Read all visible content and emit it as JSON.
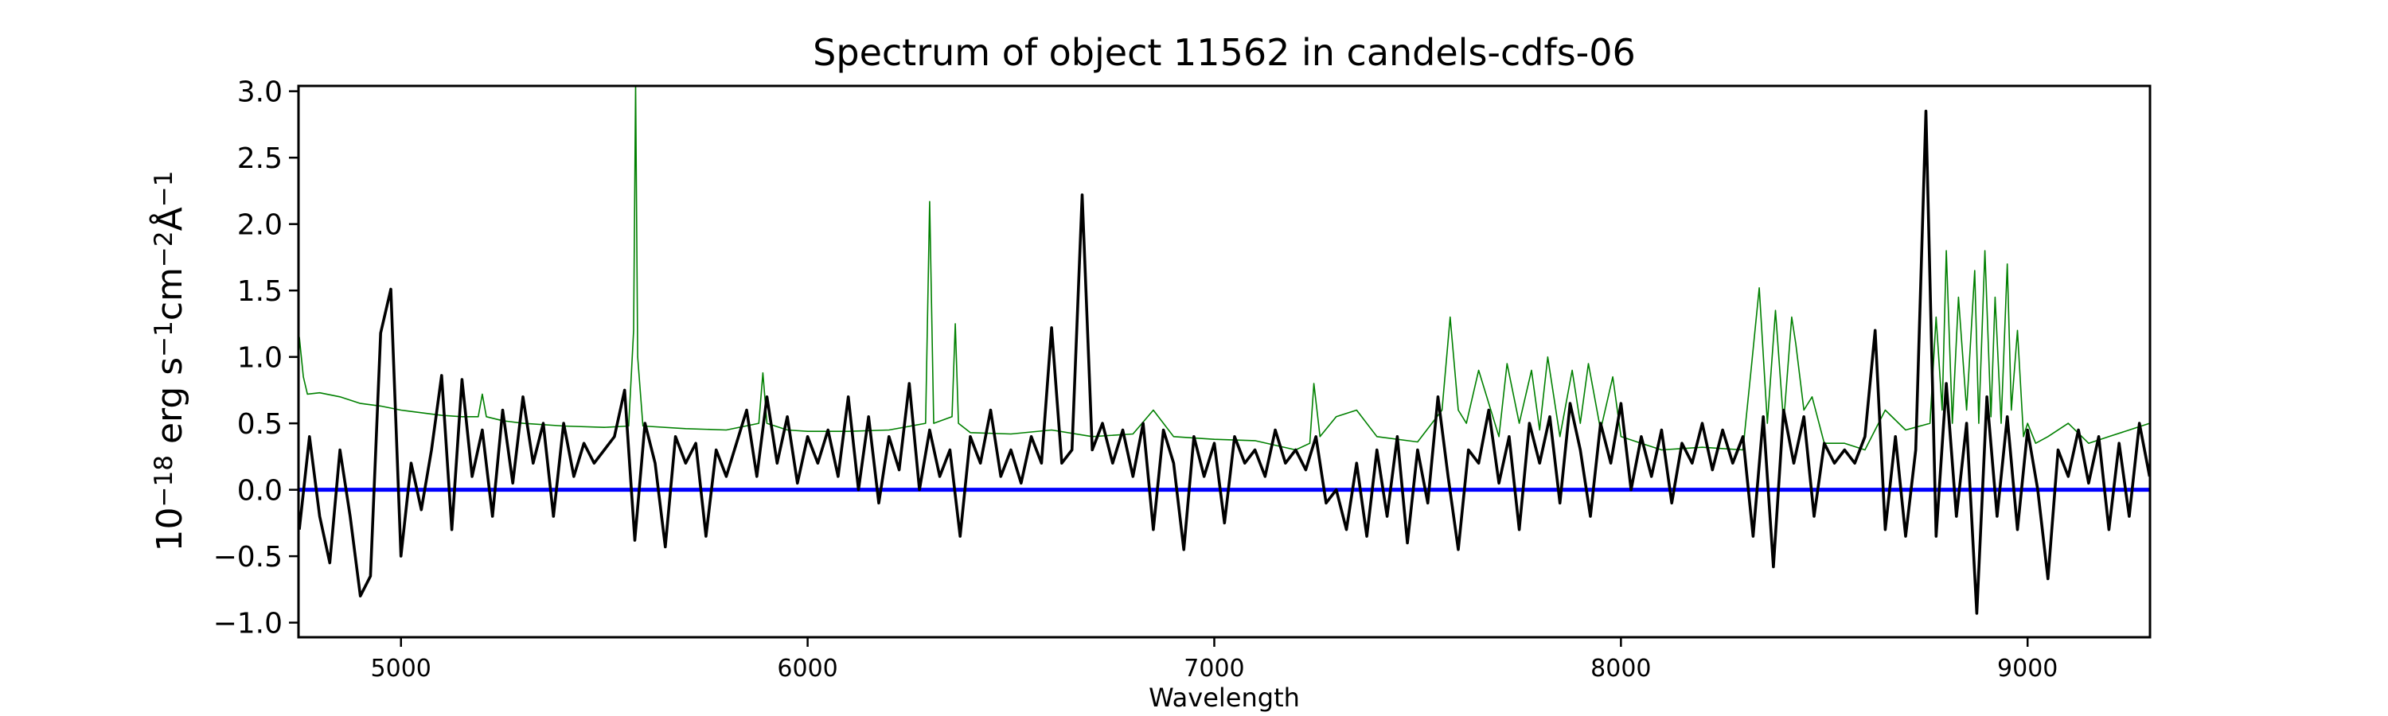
{
  "chart_data": {
    "type": "line",
    "title": "Spectrum of object 11562 in candels-cdfs-06",
    "xlabel": "Wavelength",
    "ylabel_parts": [
      {
        "text": "10",
        "sup": false
      },
      {
        "text": "−18",
        "sup": true
      },
      {
        "text": " erg s",
        "sup": false
      },
      {
        "text": "−1",
        "sup": true
      },
      {
        "text": "cm",
        "sup": false
      },
      {
        "text": "−2",
        "sup": true
      },
      {
        "text": "Å",
        "sup": false
      },
      {
        "text": "−1",
        "sup": true
      }
    ],
    "xlim": [
      4748,
      9301
    ],
    "ylim": [
      -1.11,
      3.04
    ],
    "xticks": [
      5000,
      6000,
      7000,
      8000,
      9000
    ],
    "yticks": [
      -1.0,
      -0.5,
      0.0,
      0.5,
      1.0,
      1.5,
      2.0,
      2.5,
      3.0
    ],
    "grid": false,
    "series": [
      {
        "color": "#008000",
        "x": [
          4750,
          4760,
          4770,
          4800,
          4850,
          4900,
          4950,
          5000,
          5050,
          5100,
          5150,
          5190,
          5200,
          5210,
          5250,
          5300,
          5400,
          5500,
          5560,
          5572,
          5577,
          5582,
          5595,
          5700,
          5800,
          5880,
          5890,
          5900,
          5950,
          6000,
          6100,
          6200,
          6290,
          6300,
          6310,
          6355,
          6363,
          6371,
          6400,
          6500,
          6600,
          6700,
          6800,
          6850,
          6900,
          7000,
          7100,
          7200,
          7235,
          7245,
          7260,
          7300,
          7350,
          7400,
          7500,
          7560,
          7580,
          7600,
          7620,
          7650,
          7700,
          7720,
          7750,
          7780,
          7800,
          7820,
          7850,
          7880,
          7900,
          7920,
          7950,
          7980,
          8000,
          8050,
          8100,
          8200,
          8300,
          8320,
          8340,
          8360,
          8380,
          8400,
          8420,
          8430,
          8450,
          8470,
          8500,
          8550,
          8600,
          8650,
          8700,
          8760,
          8775,
          8790,
          8800,
          8815,
          8830,
          8850,
          8870,
          8880,
          8895,
          8910,
          8920,
          8935,
          8950,
          8960,
          8975,
          8990,
          9000,
          9020,
          9050,
          9100,
          9150,
          9200,
          9250,
          9300
        ],
        "y": [
          1.15,
          0.85,
          0.72,
          0.73,
          0.7,
          0.65,
          0.63,
          0.6,
          0.58,
          0.56,
          0.55,
          0.55,
          0.72,
          0.55,
          0.52,
          0.5,
          0.48,
          0.47,
          0.48,
          1.2,
          3.05,
          1.0,
          0.48,
          0.46,
          0.45,
          0.5,
          0.88,
          0.5,
          0.45,
          0.44,
          0.44,
          0.45,
          0.5,
          2.17,
          0.5,
          0.55,
          1.25,
          0.5,
          0.43,
          0.42,
          0.45,
          0.4,
          0.42,
          0.6,
          0.4,
          0.38,
          0.37,
          0.3,
          0.35,
          0.8,
          0.4,
          0.55,
          0.6,
          0.4,
          0.36,
          0.6,
          1.3,
          0.6,
          0.5,
          0.9,
          0.4,
          0.95,
          0.5,
          0.9,
          0.45,
          1.0,
          0.4,
          0.9,
          0.5,
          0.95,
          0.45,
          0.85,
          0.4,
          0.35,
          0.3,
          0.32,
          0.3,
          0.9,
          1.52,
          0.5,
          1.35,
          0.5,
          1.3,
          1.1,
          0.6,
          0.7,
          0.35,
          0.35,
          0.3,
          0.6,
          0.45,
          0.5,
          1.3,
          0.6,
          1.8,
          0.5,
          1.45,
          0.6,
          1.65,
          0.5,
          1.8,
          0.55,
          1.45,
          0.5,
          1.7,
          0.6,
          1.2,
          0.4,
          0.5,
          0.35,
          0.4,
          0.5,
          0.35,
          0.4,
          0.45,
          0.5
        ]
      },
      {
        "color": "#0000ff",
        "x": [
          4748,
          9301
        ],
        "y": [
          0.0,
          0.0
        ]
      },
      {
        "color": "#000000",
        "x": [
          4750,
          4775,
          4800,
          4825,
          4850,
          4875,
          4900,
          4925,
          4950,
          4975,
          5000,
          5025,
          5050,
          5075,
          5100,
          5125,
          5150,
          5175,
          5200,
          5225,
          5250,
          5275,
          5300,
          5325,
          5350,
          5375,
          5400,
          5425,
          5450,
          5475,
          5500,
          5525,
          5550,
          5575,
          5600,
          5625,
          5650,
          5675,
          5700,
          5725,
          5750,
          5775,
          5800,
          5825,
          5850,
          5875,
          5900,
          5925,
          5950,
          5975,
          6000,
          6025,
          6050,
          6075,
          6100,
          6125,
          6150,
          6175,
          6200,
          6225,
          6250,
          6275,
          6300,
          6325,
          6350,
          6375,
          6400,
          6425,
          6450,
          6475,
          6500,
          6525,
          6550,
          6575,
          6600,
          6625,
          6650,
          6675,
          6700,
          6725,
          6750,
          6775,
          6800,
          6825,
          6850,
          6875,
          6900,
          6925,
          6950,
          6975,
          7000,
          7025,
          7050,
          7075,
          7100,
          7125,
          7150,
          7175,
          7200,
          7225,
          7250,
          7275,
          7300,
          7325,
          7350,
          7375,
          7400,
          7425,
          7450,
          7475,
          7500,
          7525,
          7550,
          7575,
          7600,
          7625,
          7650,
          7675,
          7700,
          7725,
          7750,
          7775,
          7800,
          7825,
          7850,
          7875,
          7900,
          7925,
          7950,
          7975,
          8000,
          8025,
          8050,
          8075,
          8100,
          8125,
          8150,
          8175,
          8200,
          8225,
          8250,
          8275,
          8300,
          8325,
          8350,
          8375,
          8400,
          8425,
          8450,
          8475,
          8500,
          8525,
          8550,
          8575,
          8600,
          8625,
          8650,
          8675,
          8700,
          8725,
          8750,
          8775,
          8800,
          8825,
          8850,
          8875,
          8900,
          8925,
          8950,
          8975,
          9000,
          9025,
          9050,
          9075,
          9100,
          9125,
          9150,
          9175,
          9200,
          9225,
          9250,
          9275,
          9300
        ],
        "y": [
          -0.3,
          0.4,
          -0.2,
          -0.55,
          0.3,
          -0.2,
          -0.8,
          -0.65,
          1.18,
          1.51,
          -0.5,
          0.2,
          -0.15,
          0.3,
          0.86,
          -0.3,
          0.83,
          0.1,
          0.45,
          -0.2,
          0.6,
          0.05,
          0.7,
          0.2,
          0.5,
          -0.2,
          0.5,
          0.1,
          0.35,
          0.2,
          0.3,
          0.4,
          0.75,
          -0.38,
          0.5,
          0.2,
          -0.43,
          0.4,
          0.2,
          0.35,
          -0.35,
          0.3,
          0.1,
          0.35,
          0.6,
          0.1,
          0.7,
          0.2,
          0.55,
          0.05,
          0.4,
          0.2,
          0.45,
          0.1,
          0.7,
          0.0,
          0.55,
          -0.1,
          0.4,
          0.15,
          0.8,
          0.0,
          0.45,
          0.1,
          0.3,
          -0.35,
          0.4,
          0.2,
          0.6,
          0.1,
          0.3,
          0.05,
          0.4,
          0.2,
          1.22,
          0.2,
          0.3,
          2.22,
          0.3,
          0.5,
          0.2,
          0.45,
          0.1,
          0.5,
          -0.3,
          0.45,
          0.2,
          -0.45,
          0.4,
          0.1,
          0.35,
          -0.25,
          0.4,
          0.2,
          0.3,
          0.1,
          0.45,
          0.2,
          0.3,
          0.15,
          0.4,
          -0.1,
          0.0,
          -0.3,
          0.2,
          -0.35,
          0.3,
          -0.2,
          0.4,
          -0.4,
          0.3,
          -0.1,
          0.7,
          0.1,
          -0.45,
          0.3,
          0.2,
          0.6,
          0.05,
          0.4,
          -0.3,
          0.5,
          0.2,
          0.55,
          -0.1,
          0.65,
          0.3,
          -0.2,
          0.5,
          0.2,
          0.65,
          0.0,
          0.4,
          0.1,
          0.45,
          -0.1,
          0.35,
          0.2,
          0.5,
          0.15,
          0.45,
          0.2,
          0.4,
          -0.35,
          0.55,
          -0.58,
          0.6,
          0.2,
          0.55,
          -0.2,
          0.35,
          0.2,
          0.3,
          0.2,
          0.4,
          1.2,
          -0.3,
          0.4,
          -0.35,
          0.3,
          2.85,
          -0.35,
          0.8,
          -0.2,
          0.5,
          -0.93,
          0.7,
          -0.2,
          0.55,
          -0.3,
          0.45,
          0.0,
          -0.67,
          0.3,
          0.1,
          0.45,
          0.05,
          0.4,
          -0.3,
          0.35,
          -0.2,
          0.5,
          0.1
        ]
      }
    ]
  }
}
